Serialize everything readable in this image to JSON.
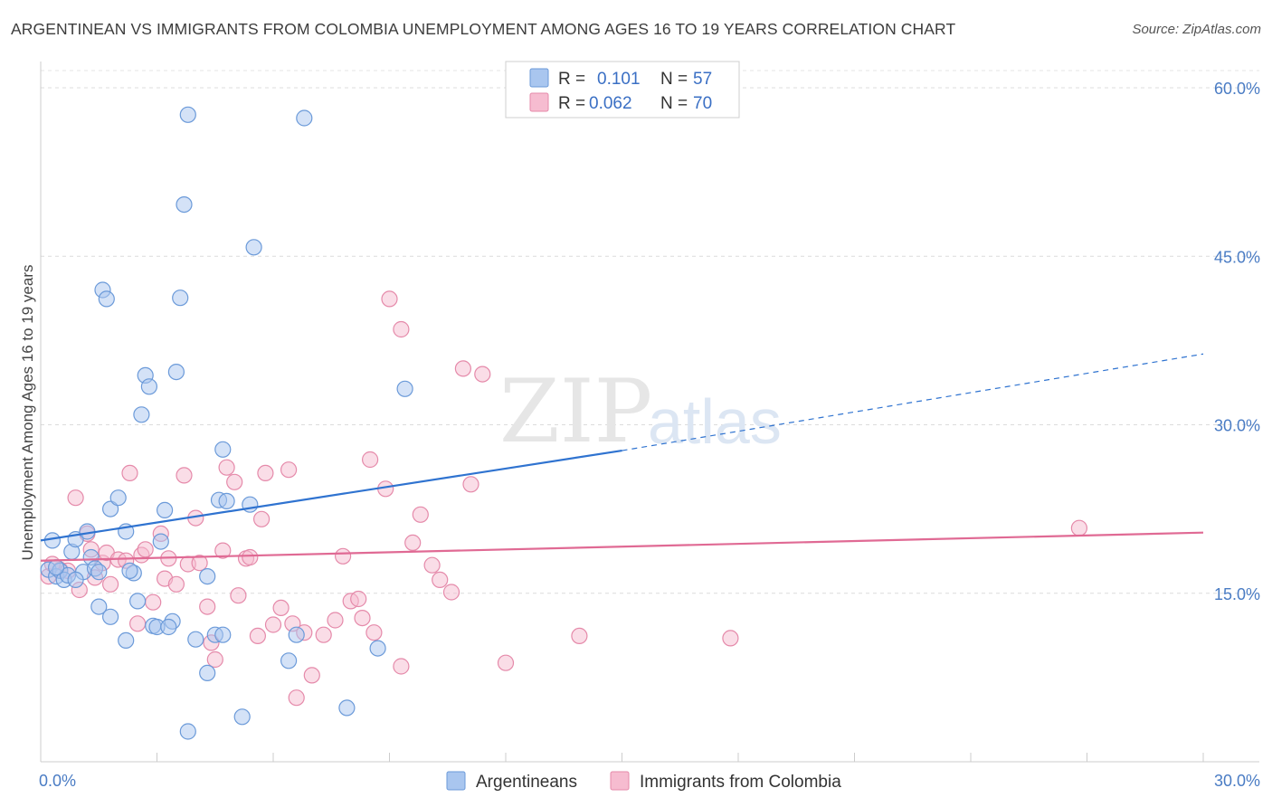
{
  "header": {
    "title": "ARGENTINEAN VS IMMIGRANTS FROM COLOMBIA UNEMPLOYMENT AMONG AGES 16 TO 19 YEARS CORRELATION CHART",
    "source": "Source: ZipAtlas.com"
  },
  "watermark": {
    "zip": "ZIP",
    "atlas": "atlas"
  },
  "legend": {
    "items": [
      {
        "r_label": "R =",
        "r_value": "0.101",
        "n_label": "N =",
        "n_value": "57",
        "color": "#a9c6ef",
        "stroke": "#6b9ad9"
      },
      {
        "r_label": "R =",
        "r_value": "0.062",
        "n_label": "N =",
        "n_value": "70",
        "color": "#f6bcd0",
        "stroke": "#e58aaa"
      }
    ]
  },
  "chart_data": {
    "type": "scatter",
    "title": "ARGENTINEAN VS IMMIGRANTS FROM COLOMBIA UNEMPLOYMENT AMONG AGES 16 TO 19 YEARS CORRELATION CHART",
    "xlabel": "",
    "ylabel": "Unemployment Among Ages 16 to 19 years",
    "xlim": [
      0,
      30
    ],
    "ylim": [
      0,
      60
    ],
    "x_tick_labels": [
      "0.0%",
      "30.0%"
    ],
    "y_ticks": [
      15,
      30,
      45,
      60
    ],
    "y_tick_labels": [
      "15.0%",
      "30.0%",
      "45.0%",
      "60.0%"
    ],
    "grid": true,
    "legend_position": "top-center",
    "series": [
      {
        "name": "Argentineans",
        "color": "#a9c6ef",
        "stroke": "#6b9ad9",
        "trend": {
          "x0": 0,
          "y0": 19.7,
          "x1": 15,
          "y1": 27.7,
          "dash_to_x": 30,
          "dash_to_y": 36.3,
          "color": "#2f73d0"
        },
        "points": [
          [
            0.3,
            19.7
          ],
          [
            0.2,
            17.1
          ],
          [
            0.4,
            16.5
          ],
          [
            0.5,
            17.0
          ],
          [
            0.6,
            16.2
          ],
          [
            0.7,
            16.6
          ],
          [
            0.8,
            18.7
          ],
          [
            0.9,
            19.8
          ],
          [
            1.1,
            16.9
          ],
          [
            1.2,
            20.5
          ],
          [
            1.3,
            18.2
          ],
          [
            1.4,
            17.2
          ],
          [
            1.5,
            16.9
          ],
          [
            1.5,
            13.8
          ],
          [
            1.8,
            12.9
          ],
          [
            1.8,
            22.5
          ],
          [
            2.0,
            23.5
          ],
          [
            2.2,
            20.5
          ],
          [
            2.2,
            10.8
          ],
          [
            2.4,
            16.8
          ],
          [
            2.5,
            14.3
          ],
          [
            2.6,
            30.9
          ],
          [
            2.7,
            34.4
          ],
          [
            2.8,
            33.4
          ],
          [
            2.9,
            12.1
          ],
          [
            3.1,
            19.6
          ],
          [
            3.2,
            22.4
          ],
          [
            3.4,
            12.5
          ],
          [
            3.5,
            34.7
          ],
          [
            3.6,
            41.3
          ],
          [
            3.7,
            49.6
          ],
          [
            3.8,
            57.6
          ],
          [
            3.8,
            2.7
          ],
          [
            4.0,
            10.9
          ],
          [
            4.3,
            16.5
          ],
          [
            4.3,
            7.9
          ],
          [
            4.5,
            11.3
          ],
          [
            4.6,
            23.3
          ],
          [
            4.7,
            27.8
          ],
          [
            4.7,
            11.3
          ],
          [
            4.8,
            23.2
          ],
          [
            5.2,
            4.0
          ],
          [
            5.4,
            22.9
          ],
          [
            5.5,
            45.8
          ],
          [
            6.4,
            9.0
          ],
          [
            6.6,
            11.3
          ],
          [
            6.8,
            57.3
          ],
          [
            7.9,
            4.8
          ],
          [
            8.7,
            10.1
          ],
          [
            9.4,
            33.2
          ],
          [
            1.6,
            42.0
          ],
          [
            1.7,
            41.2
          ],
          [
            0.4,
            17.3
          ],
          [
            0.9,
            16.2
          ],
          [
            3.0,
            12.0
          ],
          [
            2.3,
            17.0
          ],
          [
            3.3,
            12.0
          ]
        ]
      },
      {
        "name": "Immigrants from Colombia",
        "color": "#f6bcd0",
        "stroke": "#e58aaa",
        "trend": {
          "x0": 0,
          "y0": 17.9,
          "x1": 30,
          "y1": 20.4,
          "color": "#e06a94"
        },
        "points": [
          [
            0.2,
            16.5
          ],
          [
            0.5,
            17.1
          ],
          [
            0.7,
            17.0
          ],
          [
            0.9,
            23.5
          ],
          [
            1.0,
            15.3
          ],
          [
            1.2,
            20.3
          ],
          [
            1.3,
            18.9
          ],
          [
            1.4,
            16.4
          ],
          [
            1.6,
            17.7
          ],
          [
            1.7,
            18.6
          ],
          [
            1.8,
            15.8
          ],
          [
            2.0,
            18.0
          ],
          [
            2.2,
            17.9
          ],
          [
            2.3,
            25.7
          ],
          [
            2.5,
            12.3
          ],
          [
            2.6,
            18.4
          ],
          [
            2.7,
            18.9
          ],
          [
            2.9,
            14.2
          ],
          [
            3.1,
            20.3
          ],
          [
            3.2,
            16.3
          ],
          [
            3.3,
            18.1
          ],
          [
            3.5,
            15.8
          ],
          [
            3.7,
            25.5
          ],
          [
            3.8,
            17.6
          ],
          [
            4.0,
            21.7
          ],
          [
            4.1,
            17.7
          ],
          [
            4.3,
            13.8
          ],
          [
            4.4,
            10.6
          ],
          [
            4.5,
            9.1
          ],
          [
            4.7,
            18.8
          ],
          [
            4.8,
            26.2
          ],
          [
            5.0,
            24.9
          ],
          [
            5.1,
            14.8
          ],
          [
            5.3,
            18.1
          ],
          [
            5.4,
            18.2
          ],
          [
            5.6,
            11.2
          ],
          [
            5.7,
            21.6
          ],
          [
            5.8,
            25.7
          ],
          [
            6.0,
            12.2
          ],
          [
            6.2,
            13.7
          ],
          [
            6.4,
            26.0
          ],
          [
            6.5,
            12.3
          ],
          [
            6.6,
            5.7
          ],
          [
            6.8,
            11.5
          ],
          [
            7.0,
            7.7
          ],
          [
            7.3,
            11.3
          ],
          [
            7.6,
            12.6
          ],
          [
            7.8,
            18.3
          ],
          [
            8.0,
            14.3
          ],
          [
            8.2,
            14.5
          ],
          [
            8.3,
            12.8
          ],
          [
            8.5,
            26.9
          ],
          [
            8.6,
            11.5
          ],
          [
            8.9,
            24.3
          ],
          [
            9.0,
            41.2
          ],
          [
            9.3,
            38.5
          ],
          [
            9.3,
            8.5
          ],
          [
            9.6,
            19.5
          ],
          [
            9.8,
            22.0
          ],
          [
            10.1,
            17.5
          ],
          [
            10.3,
            16.2
          ],
          [
            10.6,
            15.1
          ],
          [
            10.9,
            35.0
          ],
          [
            11.1,
            24.7
          ],
          [
            11.4,
            34.5
          ],
          [
            12.0,
            8.8
          ],
          [
            13.9,
            11.2
          ],
          [
            17.8,
            11.0
          ],
          [
            26.8,
            20.8
          ],
          [
            0.3,
            17.6
          ]
        ]
      }
    ]
  }
}
